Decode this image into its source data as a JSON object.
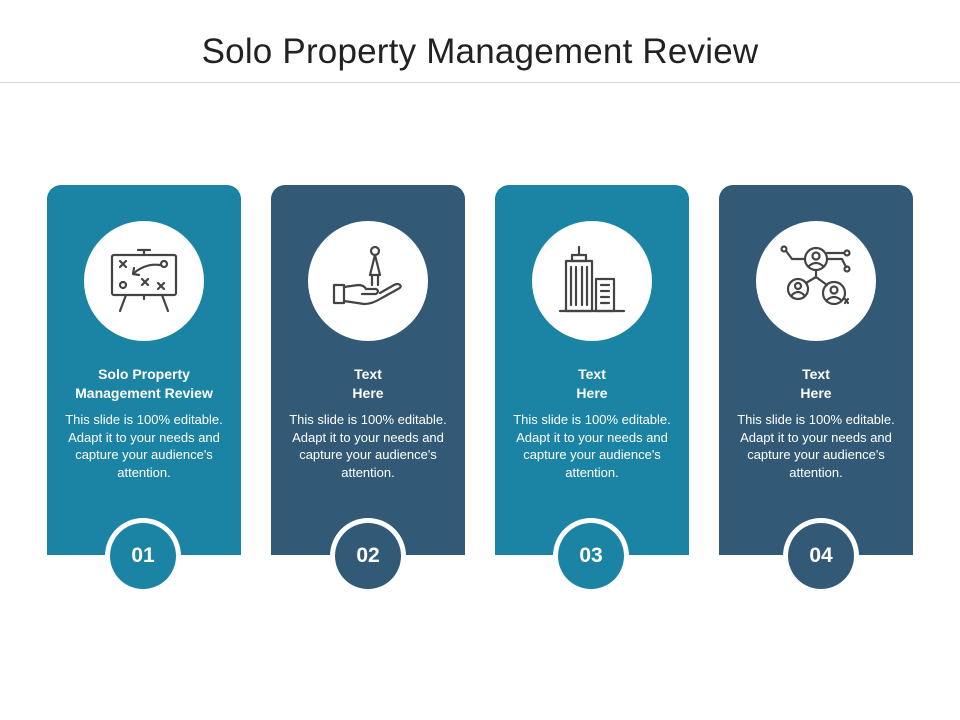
{
  "slide": {
    "title": "Solo Property Management Review"
  },
  "colors": {
    "teal": "#1b84a5",
    "navy": "#325a77",
    "icon_stroke": "#444444"
  },
  "cards": [
    {
      "number": "01",
      "heading": "Solo Property\nManagement Review",
      "body": "This slide is 100% editable. Adapt it to your needs and capture your audience's attention.",
      "icon": "strategy-board-icon",
      "color": "teal"
    },
    {
      "number": "02",
      "heading": "Text\nHere",
      "body": "This slide is 100% editable. Adapt it to your needs and capture your audience's attention.",
      "icon": "person-on-hand-icon",
      "color": "navy"
    },
    {
      "number": "03",
      "heading": "Text\nHere",
      "body": "This slide is 100% editable. Adapt it to your needs and capture your audience's attention.",
      "icon": "buildings-icon",
      "color": "teal"
    },
    {
      "number": "04",
      "heading": "Text\nHere",
      "body": "This slide is 100% editable. Adapt it to your needs and capture your audience's attention.",
      "icon": "people-network-icon",
      "color": "navy"
    }
  ]
}
